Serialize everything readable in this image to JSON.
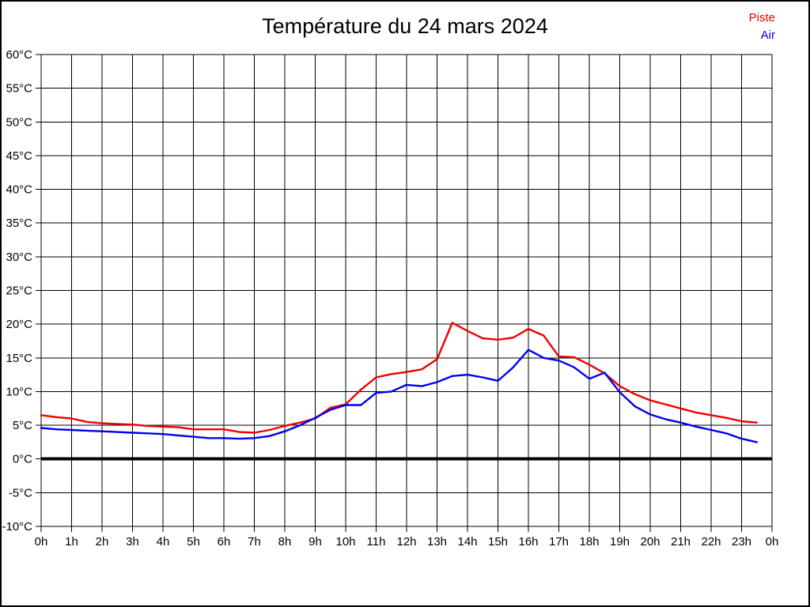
{
  "title": "Température du 24 mars 2024",
  "legend": {
    "items": [
      {
        "label": "Piste",
        "color": "#ee0000"
      },
      {
        "label": "Air",
        "color": "#0000ee"
      }
    ],
    "position": "top-right"
  },
  "chart_data": {
    "type": "line",
    "title": "Température du 24 mars 2024",
    "xlabel": "",
    "ylabel": "",
    "x_unit": "hours",
    "xlim": [
      0,
      24
    ],
    "ylim": [
      -10,
      60
    ],
    "ytick_step": 5,
    "grid": true,
    "zero_line_bold": true,
    "x": [
      0,
      0.5,
      1,
      1.5,
      2,
      2.5,
      3,
      3.5,
      4,
      4.5,
      5,
      5.5,
      6,
      6.5,
      7,
      7.5,
      8,
      8.5,
      9,
      9.5,
      10,
      10.5,
      11,
      11.5,
      12,
      12.5,
      13,
      13.5,
      14,
      14.5,
      15,
      15.5,
      16,
      16.5,
      17,
      17.5,
      18,
      18.5,
      19,
      19.5,
      20,
      20.5,
      21,
      21.5,
      22,
      22.5,
      23,
      23.5
    ],
    "series": [
      {
        "name": "Piste",
        "color": "#ee0000",
        "values": [
          6.5,
          6.2,
          6.0,
          5.5,
          5.3,
          5.2,
          5.1,
          4.9,
          4.8,
          4.7,
          4.4,
          4.4,
          4.4,
          4.0,
          3.9,
          4.3,
          4.9,
          5.4,
          6.0,
          7.6,
          8.1,
          10.3,
          12.1,
          12.6,
          12.9,
          13.3,
          14.8,
          20.2,
          19.0,
          17.9,
          17.7,
          18.0,
          19.3,
          18.3,
          15.2,
          15.1,
          14.0,
          12.7,
          10.8,
          9.6,
          8.7,
          8.1,
          7.5,
          6.9,
          6.5,
          6.1,
          5.6,
          5.4
        ]
      },
      {
        "name": "Air",
        "color": "#0000ee",
        "values": [
          4.6,
          4.4,
          4.3,
          4.2,
          4.1,
          4.0,
          3.9,
          3.8,
          3.7,
          3.5,
          3.3,
          3.1,
          3.1,
          3.0,
          3.1,
          3.4,
          4.1,
          5.0,
          6.1,
          7.3,
          8.0,
          8.0,
          9.8,
          10.0,
          11.0,
          10.8,
          11.4,
          12.3,
          12.5,
          12.1,
          11.6,
          13.6,
          16.2,
          15.0,
          14.6,
          13.6,
          11.9,
          12.8,
          9.9,
          7.8,
          6.6,
          5.9,
          5.4,
          4.8,
          4.3,
          3.8,
          3.0,
          2.5
        ]
      }
    ],
    "xticklabels": [
      "0h",
      "1h",
      "2h",
      "3h",
      "4h",
      "5h",
      "6h",
      "7h",
      "8h",
      "9h",
      "10h",
      "11h",
      "12h",
      "13h",
      "14h",
      "15h",
      "16h",
      "17h",
      "18h",
      "19h",
      "20h",
      "21h",
      "22h",
      "23h",
      "0h"
    ],
    "yticklabels": [
      "60°C",
      "55°C",
      "50°C",
      "45°C",
      "40°C",
      "35°C",
      "30°C",
      "25°C",
      "20°C",
      "15°C",
      "10°C",
      "5°C",
      "0°C",
      "-5°C",
      "-10°C"
    ],
    "legend_position": "top-right"
  }
}
